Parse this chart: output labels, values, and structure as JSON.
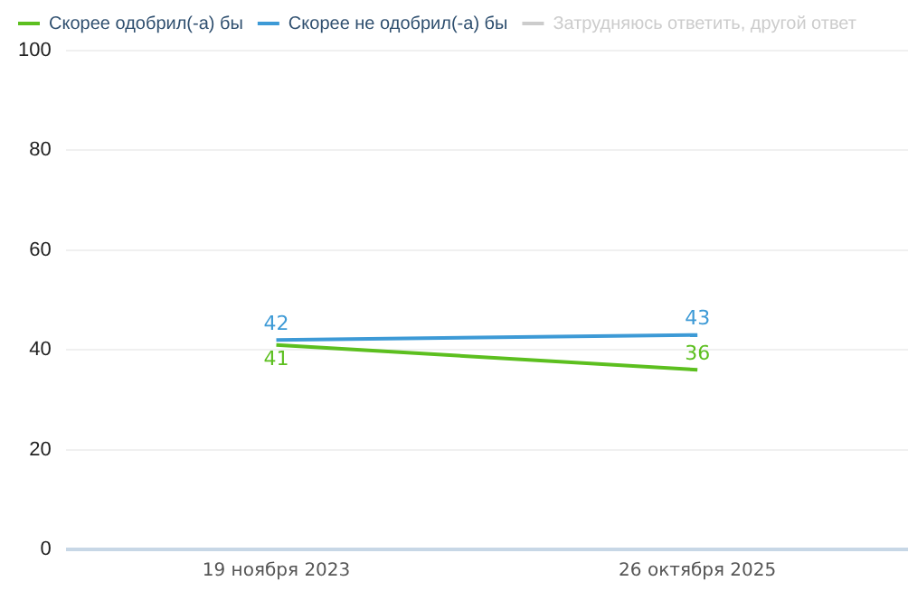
{
  "chart_data": {
    "type": "line",
    "categories": [
      "19 ноября 2023",
      "26 октября 2025"
    ],
    "series": [
      {
        "name": "Скорее одобрил(-а) бы",
        "color": "#5cbf1f",
        "values": [
          41,
          36
        ]
      },
      {
        "name": "Скорее не одобрил(-а) бы",
        "color": "#3d9ad6",
        "values": [
          42,
          43
        ]
      },
      {
        "name": "Затрудняюсь ответить, другой ответ",
        "color": "#cccccc",
        "values": [
          null,
          null
        ]
      }
    ],
    "ylim": [
      0,
      100
    ],
    "yticks": [
      0,
      20,
      40,
      60,
      80,
      100
    ],
    "grid": "y",
    "legend": "top",
    "marker": "none",
    "line_style": "solid",
    "data_labels": true
  }
}
